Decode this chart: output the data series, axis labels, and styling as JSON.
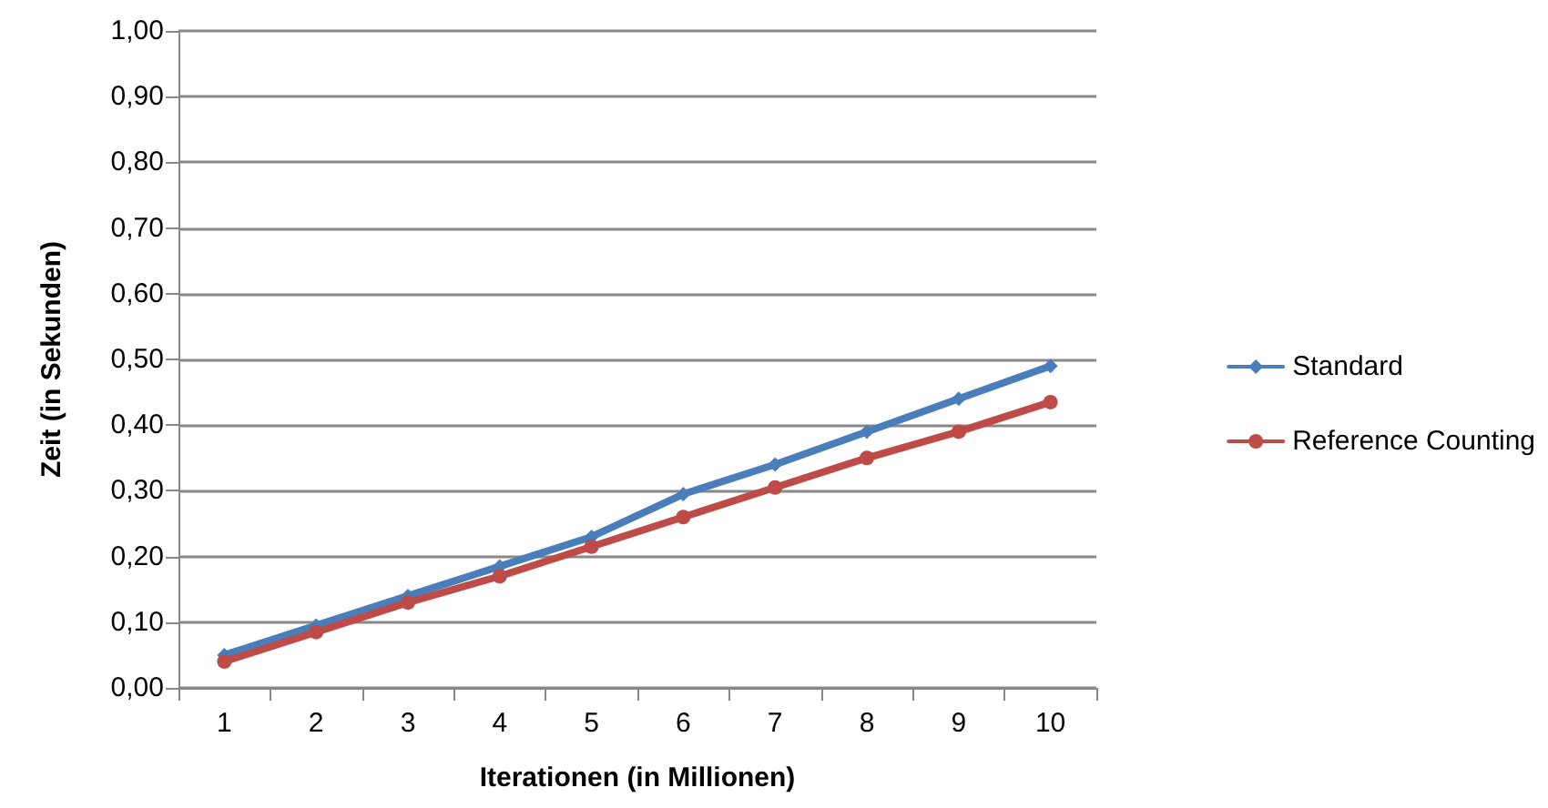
{
  "chart_data": {
    "type": "line",
    "xlabel": "Iterationen (in Millionen)",
    "ylabel": "Zeit (in Sekunden)",
    "categories": [
      "1",
      "2",
      "3",
      "4",
      "5",
      "6",
      "7",
      "8",
      "9",
      "10"
    ],
    "series": [
      {
        "name": "Standard",
        "color": "#4a7ebb",
        "marker": "diamond",
        "values": [
          0.05,
          0.095,
          0.14,
          0.185,
          0.23,
          0.295,
          0.34,
          0.39,
          0.44,
          0.49
        ]
      },
      {
        "name": "Reference Counting",
        "color": "#be4b48",
        "marker": "circle",
        "values": [
          0.04,
          0.085,
          0.13,
          0.17,
          0.215,
          0.26,
          0.305,
          0.35,
          0.39,
          0.435
        ]
      }
    ],
    "ylim": [
      0,
      1
    ],
    "yticks": [
      {
        "value": 0,
        "label": "0,00"
      },
      {
        "value": 0.1,
        "label": "0,10"
      },
      {
        "value": 0.2,
        "label": "0,20"
      },
      {
        "value": 0.3,
        "label": "0,30"
      },
      {
        "value": 0.4,
        "label": "0,40"
      },
      {
        "value": 0.5,
        "label": "0,50"
      },
      {
        "value": 0.6,
        "label": "0,60"
      },
      {
        "value": 0.7,
        "label": "0,70"
      },
      {
        "value": 0.8,
        "label": "0,80"
      },
      {
        "value": 0.9,
        "label": "0,90"
      },
      {
        "value": 1,
        "label": "1,00"
      }
    ],
    "grid": "y",
    "legend": "right",
    "line_style": "solid"
  }
}
